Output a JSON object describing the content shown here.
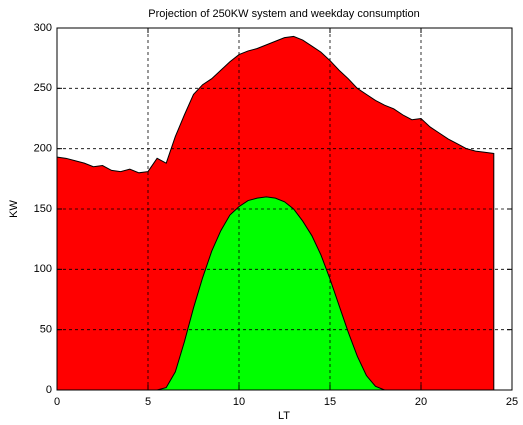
{
  "chart_data": {
    "type": "area",
    "title": "Projection of 250KW system and weekday consumption",
    "x_label": "LT",
    "y_label": "KW",
    "x": [
      0,
      0.5,
      1,
      1.5,
      2,
      2.5,
      3,
      3.5,
      4,
      4.5,
      5,
      5.5,
      6,
      6.5,
      7,
      7.5,
      8,
      8.5,
      9,
      9.5,
      10,
      10.5,
      11,
      11.5,
      12,
      12.5,
      13,
      13.5,
      14,
      14.5,
      15,
      15.5,
      16,
      16.5,
      17,
      17.5,
      18,
      18.5,
      19,
      19.5,
      20,
      20.5,
      21,
      21.5,
      22,
      22.5,
      23,
      23.5,
      24
    ],
    "series": [
      {
        "color": "#ff0000",
        "values": [
          193,
          192,
          190,
          188,
          185,
          186,
          182,
          181,
          183,
          180,
          181,
          192,
          188,
          210,
          228,
          245,
          253,
          258,
          265,
          272,
          278,
          281,
          283,
          286,
          289,
          292,
          293,
          290,
          285,
          280,
          273,
          265,
          258,
          250,
          245,
          240,
          236,
          233,
          228,
          224,
          225,
          218,
          213,
          208,
          204,
          200,
          198,
          197,
          196
        ]
      },
      {
        "color": "#00ff00",
        "values": [
          0,
          0,
          0,
          0,
          0,
          0,
          0,
          0,
          0,
          0,
          0,
          0,
          2,
          15,
          40,
          68,
          93,
          115,
          132,
          145,
          152,
          157,
          159,
          160,
          159,
          156,
          150,
          140,
          128,
          112,
          92,
          70,
          48,
          28,
          12,
          3,
          0,
          0,
          0,
          0,
          0,
          0,
          0,
          0,
          0,
          0,
          0,
          0,
          0
        ]
      }
    ],
    "xlim": [
      0,
      25
    ],
    "ylim": [
      0,
      300
    ],
    "xticks": [
      0,
      5,
      10,
      15,
      20,
      25
    ],
    "yticks": [
      0,
      50,
      100,
      150,
      200,
      250,
      300
    ],
    "grid": true
  }
}
